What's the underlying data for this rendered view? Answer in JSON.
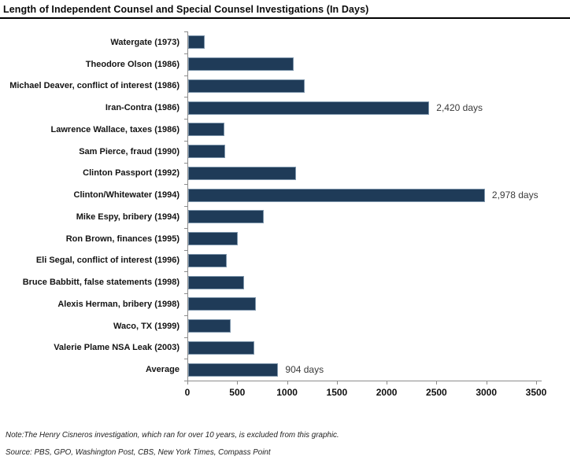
{
  "chart_data": {
    "type": "bar",
    "orientation": "horizontal",
    "title": "Length of Independent Counsel and Special Counsel Investigations (In Days)",
    "categories": [
      "Watergate (1973)",
      "Theodore Olson (1986)",
      "Michael Deaver, conflict of interest (1986)",
      "Iran-Contra (1986)",
      "Lawrence Wallace, taxes (1986)",
      "Sam Pierce, fraud (1990)",
      "Clinton Passport (1992)",
      "Clinton/Whitewater (1994)",
      "Mike Espy, bribery (1994)",
      "Ron Brown, finances (1995)",
      "Eli Segal, conflict of interest (1996)",
      "Bruce Babbitt, false statements (1998)",
      "Alexis Herman, bribery (1998)",
      "Waco, TX (1999)",
      "Valerie Plame NSA Leak (2003)",
      "Average"
    ],
    "values": [
      165,
      1060,
      1165,
      2420,
      365,
      370,
      1080,
      2978,
      755,
      495,
      390,
      560,
      680,
      425,
      665,
      904
    ],
    "point_labels": [
      "",
      "",
      "",
      "2,420 days",
      "",
      "",
      "",
      "2,978 days",
      "",
      "",
      "",
      "",
      "",
      "",
      "",
      "904 days"
    ],
    "xlabel": "",
    "ylabel": "",
    "xlim": [
      0,
      3500
    ],
    "xticks": [
      0,
      500,
      1000,
      1500,
      2000,
      2500,
      3000,
      3500
    ],
    "bar_color": "#1f3b58",
    "axis_color": "#8c8c8c",
    "grid": false,
    "legend": false
  },
  "note": "Note:The Henry Cisneros investigation, which ran for over 10 years, is excluded from this graphic.",
  "source": "Source: PBS, GPO, Washington Post, CBS, New York Times, Compass Point"
}
